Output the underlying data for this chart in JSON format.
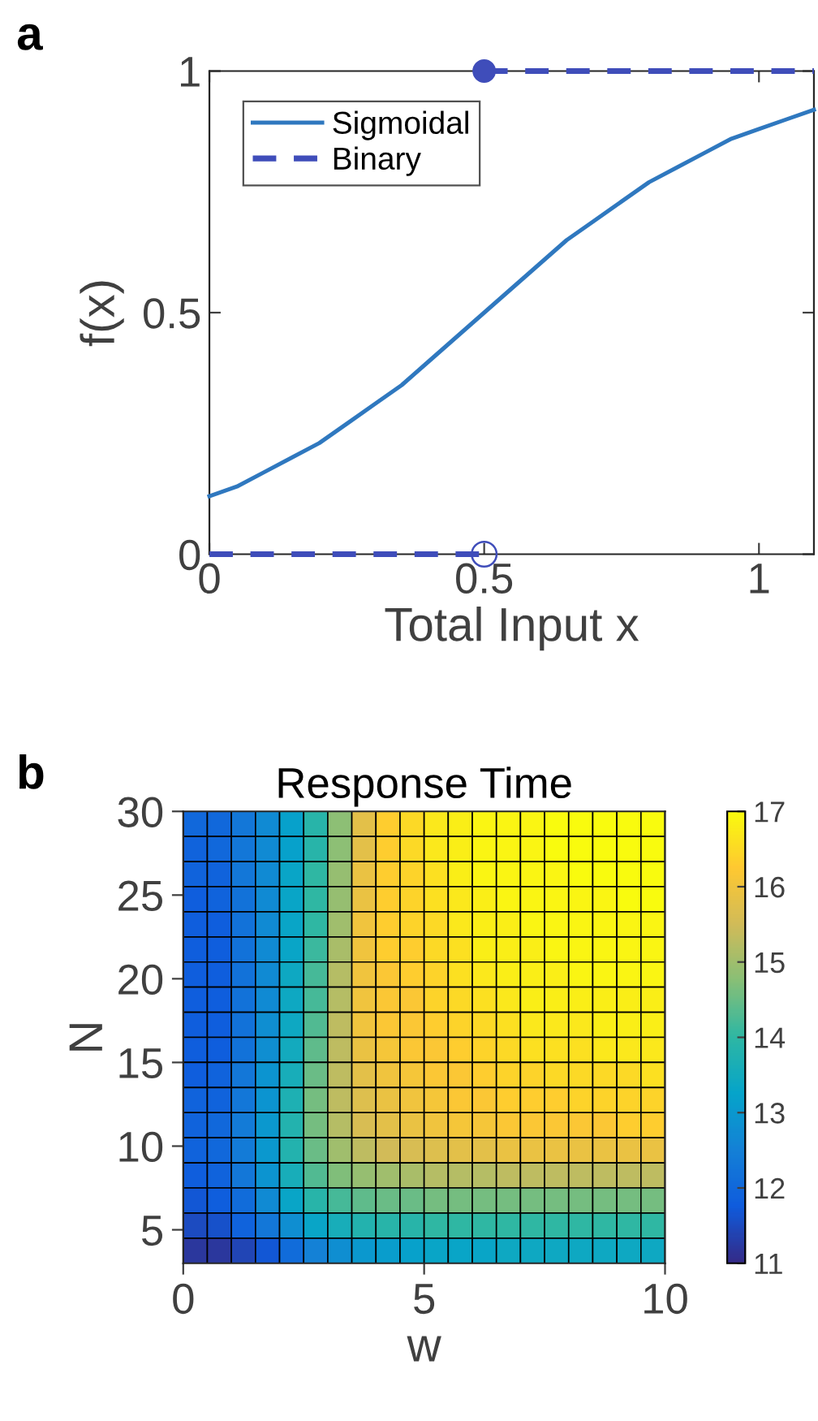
{
  "chart_data": [
    {
      "type": "line",
      "xlabel": "Total Input x",
      "ylabel": "f(x)",
      "annotations": [
        "a"
      ],
      "legend": "top left",
      "xlim": [
        0,
        1.1
      ],
      "xticks": [
        0,
        0.5,
        1
      ],
      "ylim": [
        0,
        1
      ],
      "yticks": [
        0,
        0.5,
        1
      ],
      "grid": false,
      "series": [
        {
          "name": "Sigmoidal",
          "color": "#2f78bf",
          "line_style": "solid",
          "marker": "none",
          "x": [
            0,
            0.05,
            0.1,
            0.15,
            0.2,
            0.25,
            0.3,
            0.35,
            0.4,
            0.45,
            0.5,
            0.55,
            0.6,
            0.65,
            0.7,
            0.75,
            0.8,
            0.85,
            0.9,
            0.95,
            1.0,
            1.05,
            1.1
          ],
          "values": [
            0.12,
            0.14,
            0.17,
            0.2,
            0.23,
            0.27,
            0.31,
            0.35,
            0.4,
            0.45,
            0.5,
            0.55,
            0.6,
            0.65,
            0.69,
            0.73,
            0.77,
            0.8,
            0.83,
            0.86,
            0.88,
            0.9,
            0.92
          ]
        },
        {
          "name": "Binary",
          "color": "#3f4dba",
          "line_style": "dashed",
          "marker": "none",
          "x": [
            0,
            0.5
          ],
          "values": [
            0,
            0
          ]
        },
        {
          "color": "#3f4dba",
          "line_style": "dashed",
          "marker": "none",
          "x": [
            0.5,
            1.1
          ],
          "values": [
            1,
            1
          ]
        },
        {
          "type": "scatter",
          "color": "#3f4dba",
          "marker": "circle",
          "x": [
            0.5
          ],
          "values": [
            1
          ]
        },
        {
          "color": "#3f4dba",
          "marker": "circle",
          "x": [
            0.5
          ],
          "values": [
            0
          ]
        }
      ]
    },
    {
      "type": "heatmap",
      "title": "Response Time",
      "xlabel": "w",
      "ylabel": "N",
      "annotations": [
        "b"
      ],
      "xlim": [
        0,
        10
      ],
      "xticks": [
        0,
        5,
        10
      ],
      "ylim": [
        3,
        30
      ],
      "yticks": [
        5,
        10,
        15,
        20,
        25,
        30
      ],
      "clim": [
        11,
        17
      ],
      "cticks": [
        11,
        12,
        13,
        14,
        15,
        16,
        17
      ],
      "colors": [
        "#352a87",
        "#0f5cdd",
        "#1481d6",
        "#06a4ca",
        "#2eb7a4",
        "#87bf77",
        "#d1bb59",
        "#fec832",
        "#f9fb0e"
      ],
      "cells": [
        [
          12.0,
          12.0,
          12.3,
          12.7,
          13.2,
          13.9,
          14.8,
          15.8,
          16.3,
          16.5,
          16.7,
          16.8,
          16.9,
          16.9,
          16.9,
          17.0,
          17.0,
          17.0,
          17.0,
          17.0
        ],
        [
          11.9,
          12.0,
          12.3,
          12.7,
          13.2,
          13.9,
          14.8,
          15.8,
          16.3,
          16.5,
          16.7,
          16.8,
          16.9,
          16.9,
          16.9,
          17.0,
          17.0,
          17.0,
          17.0,
          17.0
        ],
        [
          11.9,
          11.9,
          12.3,
          12.7,
          13.3,
          14.0,
          14.9,
          15.9,
          16.3,
          16.4,
          16.6,
          16.8,
          16.9,
          16.9,
          16.9,
          16.9,
          17.0,
          17.0,
          17.0,
          17.0
        ],
        [
          11.8,
          11.9,
          12.2,
          12.7,
          13.3,
          14.0,
          14.9,
          15.9,
          16.3,
          16.4,
          16.6,
          16.7,
          16.8,
          16.9,
          16.9,
          16.9,
          16.9,
          16.9,
          17.0,
          17.0
        ],
        [
          11.8,
          11.8,
          12.2,
          12.7,
          13.3,
          14.0,
          15.0,
          16.0,
          16.3,
          16.4,
          16.5,
          16.7,
          16.8,
          16.8,
          16.9,
          16.9,
          16.9,
          16.9,
          16.9,
          16.9
        ],
        [
          11.8,
          11.8,
          12.2,
          12.7,
          13.3,
          14.1,
          15.1,
          16.0,
          16.3,
          16.3,
          16.5,
          16.6,
          16.8,
          16.8,
          16.8,
          16.9,
          16.9,
          16.9,
          16.9,
          16.9
        ],
        [
          11.8,
          11.8,
          12.2,
          12.7,
          13.4,
          14.2,
          15.2,
          16.0,
          16.2,
          16.3,
          16.4,
          16.6,
          16.7,
          16.8,
          16.8,
          16.8,
          16.9,
          16.9,
          16.9,
          16.9
        ],
        [
          11.8,
          11.8,
          12.2,
          12.7,
          13.4,
          14.2,
          15.2,
          16.0,
          16.2,
          16.2,
          16.4,
          16.5,
          16.6,
          16.7,
          16.8,
          16.8,
          16.8,
          16.8,
          16.8,
          16.8
        ],
        [
          11.8,
          11.8,
          12.2,
          12.8,
          13.4,
          14.3,
          15.3,
          16.0,
          16.2,
          16.2,
          16.3,
          16.4,
          16.5,
          16.6,
          16.7,
          16.7,
          16.7,
          16.8,
          16.8,
          16.8
        ],
        [
          11.8,
          11.8,
          12.2,
          12.8,
          13.5,
          14.4,
          15.3,
          15.9,
          16.1,
          16.2,
          16.2,
          16.3,
          16.4,
          16.5,
          16.6,
          16.6,
          16.6,
          16.7,
          16.7,
          16.7
        ],
        [
          11.8,
          11.9,
          12.3,
          12.9,
          13.6,
          14.5,
          15.3,
          15.8,
          16.0,
          16.1,
          16.2,
          16.2,
          16.3,
          16.4,
          16.4,
          16.5,
          16.5,
          16.5,
          16.5,
          16.6
        ],
        [
          11.9,
          11.9,
          12.3,
          12.9,
          13.7,
          14.6,
          15.3,
          15.7,
          15.9,
          16.0,
          16.1,
          16.2,
          16.2,
          16.3,
          16.3,
          16.3,
          16.4,
          16.4,
          16.4,
          16.4
        ],
        [
          11.9,
          12.0,
          12.4,
          13.0,
          13.8,
          14.6,
          15.2,
          15.6,
          15.8,
          15.9,
          16.0,
          16.1,
          16.1,
          16.2,
          16.2,
          16.2,
          16.2,
          16.2,
          16.3,
          16.3
        ],
        [
          11.9,
          12.0,
          12.4,
          13.0,
          13.8,
          14.5,
          15.0,
          15.3,
          15.5,
          15.6,
          15.7,
          15.8,
          15.8,
          15.9,
          15.9,
          15.9,
          15.9,
          15.9,
          15.9,
          15.9
        ],
        [
          11.8,
          11.9,
          12.3,
          12.9,
          13.6,
          14.3,
          14.7,
          14.9,
          15.0,
          15.1,
          15.2,
          15.2,
          15.2,
          15.3,
          15.3,
          15.3,
          15.3,
          15.3,
          15.3,
          15.3
        ],
        [
          11.7,
          11.8,
          12.1,
          12.7,
          13.3,
          13.9,
          14.2,
          14.4,
          14.5,
          14.5,
          14.6,
          14.6,
          14.6,
          14.6,
          14.6,
          14.6,
          14.6,
          14.6,
          14.6,
          14.6
        ],
        [
          11.5,
          11.6,
          11.9,
          12.3,
          12.8,
          13.3,
          13.6,
          13.8,
          13.9,
          13.9,
          14.0,
          14.0,
          14.0,
          14.0,
          14.0,
          14.0,
          14.0,
          14.0,
          14.0,
          14.0
        ],
        [
          11.2,
          11.2,
          11.4,
          11.7,
          12.1,
          12.5,
          12.8,
          13.0,
          13.1,
          13.2,
          13.3,
          13.3,
          13.3,
          13.4,
          13.4,
          13.4,
          13.4,
          13.4,
          13.4,
          13.4
        ]
      ]
    }
  ]
}
